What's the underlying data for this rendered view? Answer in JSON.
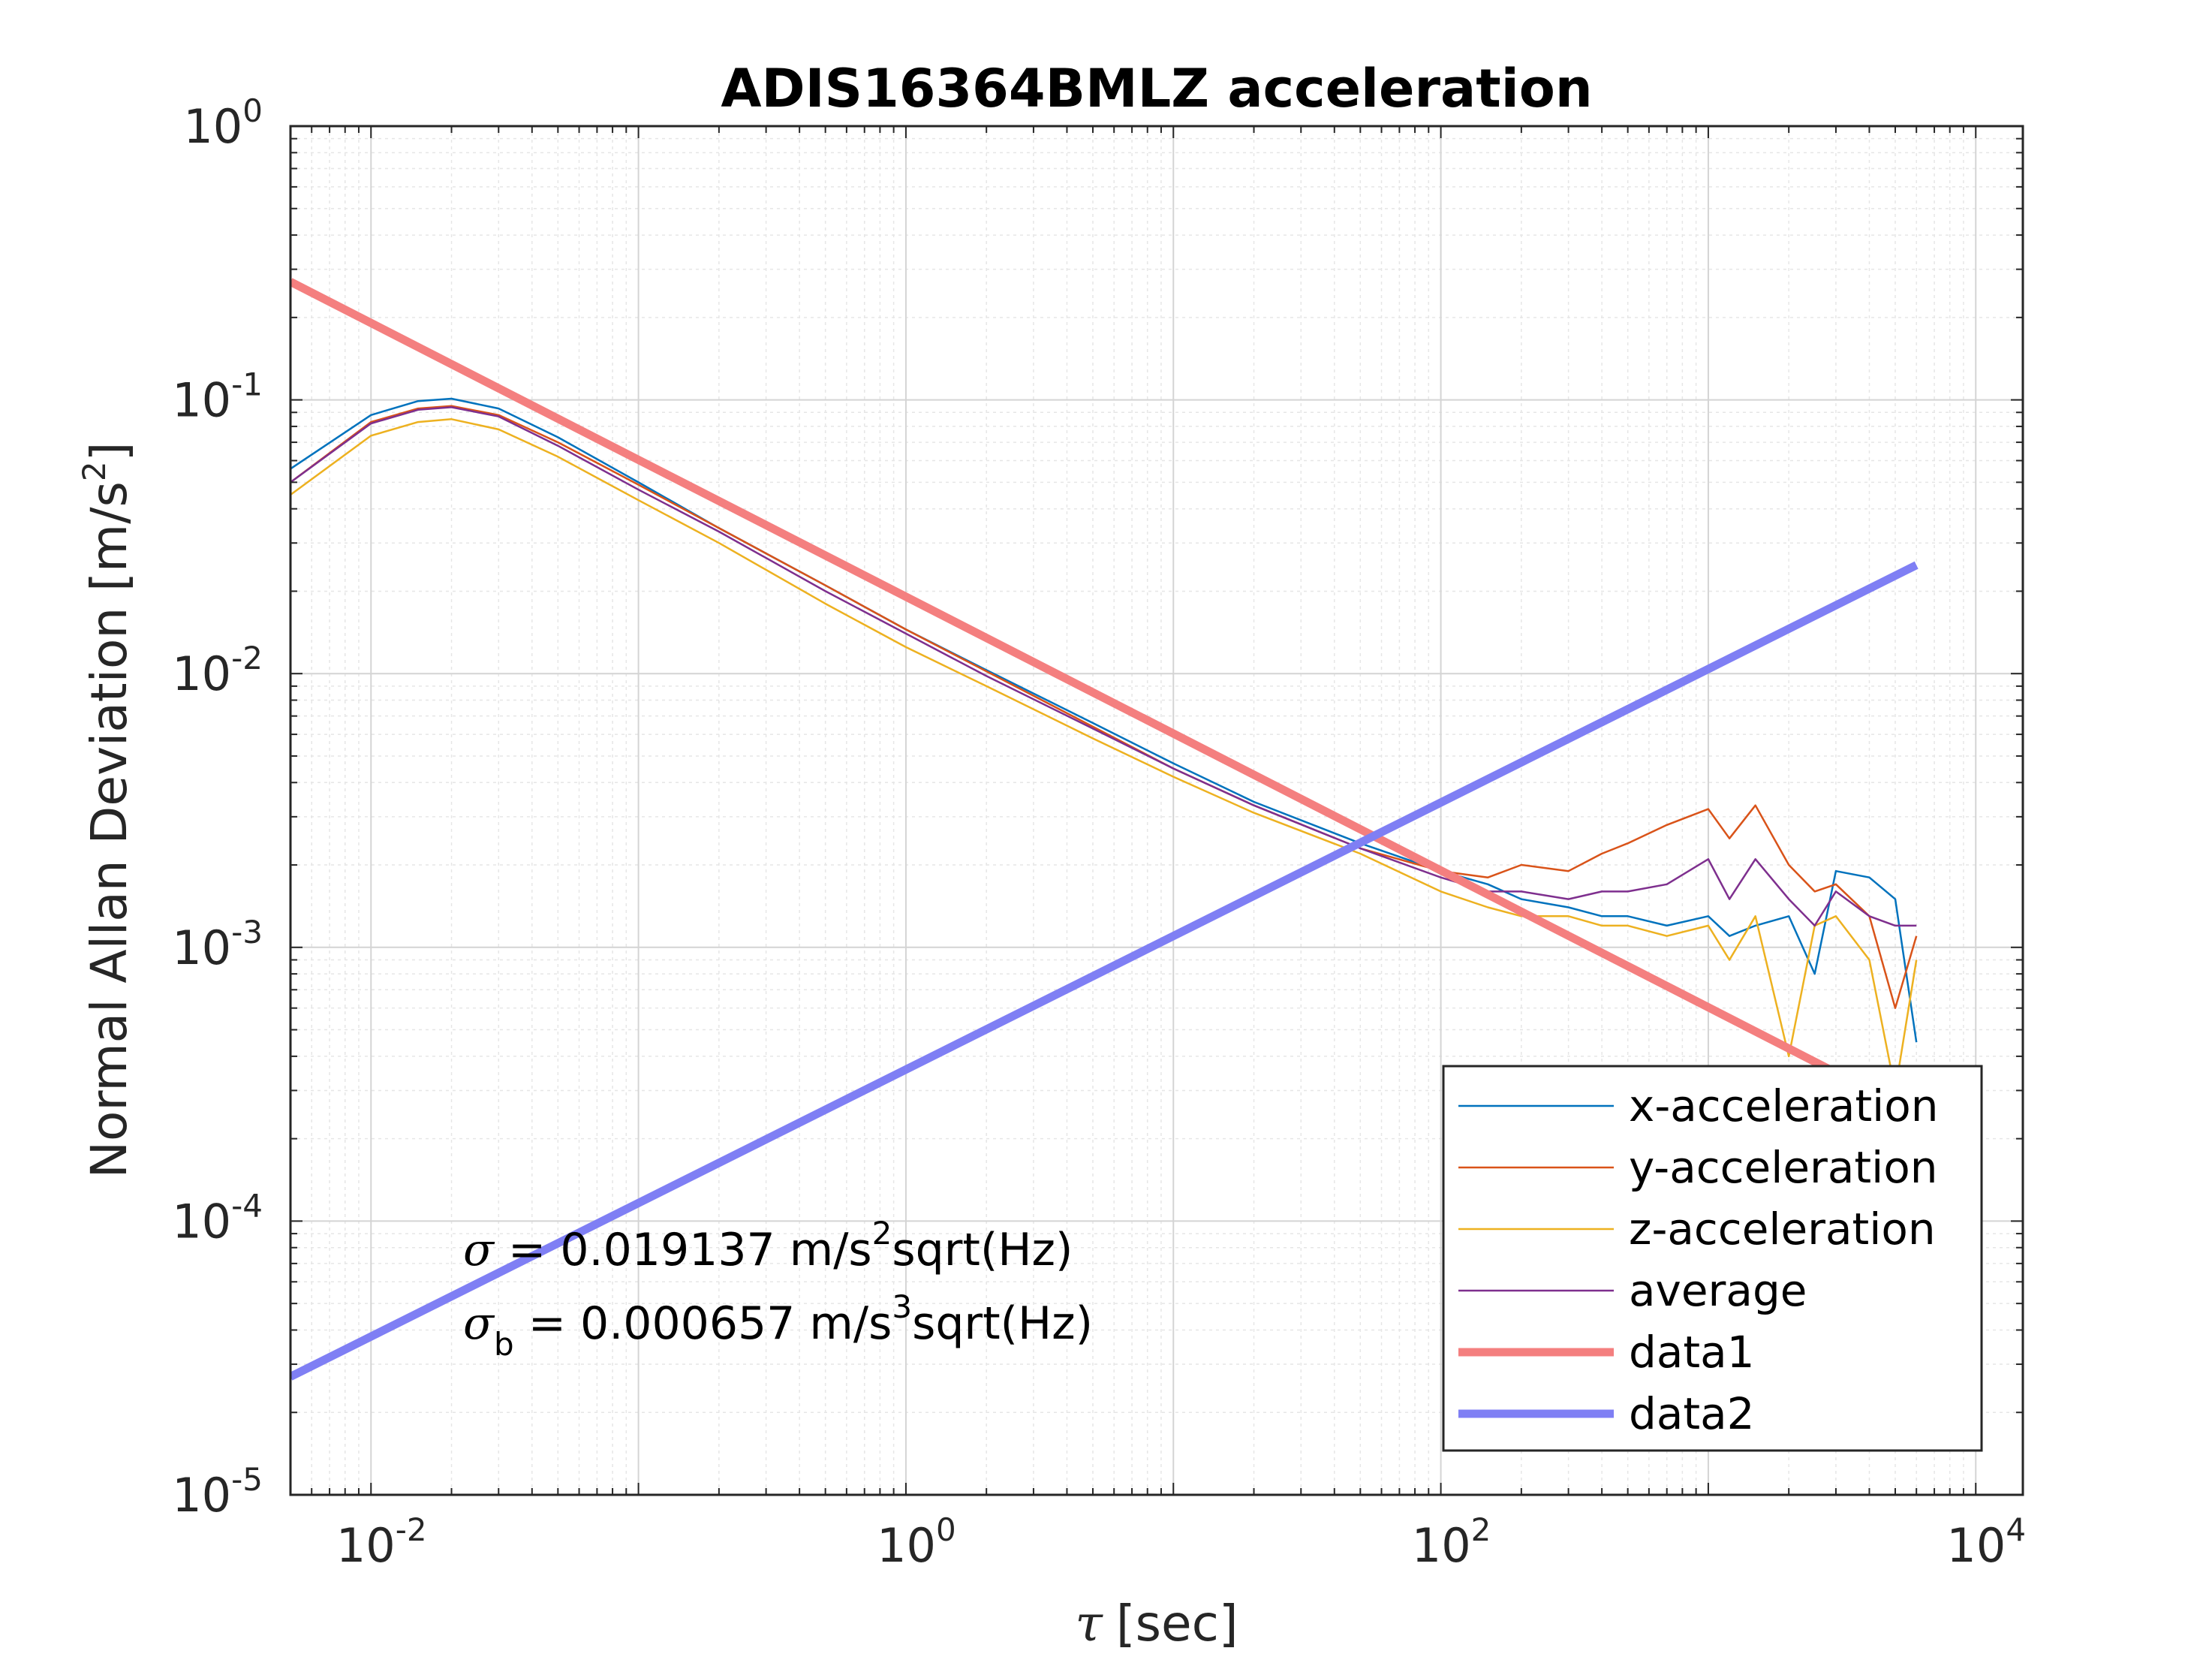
{
  "chart_data": {
    "type": "line",
    "title": "ADIS16364BMLZ acceleration",
    "xlabel": {
      "symbol": "τ",
      "text": "[sec]"
    },
    "ylabel": {
      "text": "Normal Allan Deviation [m/s",
      "sup": "2",
      "close": "]"
    },
    "xscale": "log",
    "yscale": "log",
    "xlim": [
      0.005,
      15000
    ],
    "ylim": [
      1e-05,
      1
    ],
    "grid": true,
    "minor_grid": true,
    "legend_position": "lower-right",
    "x_ticks": [
      {
        "base": "10",
        "exp": "-2",
        "value": 0.01
      },
      {
        "base": "10",
        "exp": "0",
        "value": 1
      },
      {
        "base": "10",
        "exp": "2",
        "value": 100
      },
      {
        "base": "10",
        "exp": "4",
        "value": 10000
      }
    ],
    "y_ticks": [
      {
        "base": "10",
        "exp": "0",
        "value": 1
      },
      {
        "base": "10",
        "exp": "-1",
        "value": 0.1
      },
      {
        "base": "10",
        "exp": "-2",
        "value": 0.01
      },
      {
        "base": "10",
        "exp": "-3",
        "value": 0.001
      },
      {
        "base": "10",
        "exp": "-4",
        "value": 0.0001
      },
      {
        "base": "10",
        "exp": "-5",
        "value": 1e-05
      }
    ],
    "series": [
      {
        "name": "x-acceleration",
        "color": "#0072BD",
        "width": 2.5,
        "x": [
          0.005,
          0.01,
          0.015,
          0.02,
          0.03,
          0.05,
          0.1,
          0.2,
          0.5,
          1,
          2,
          5,
          10,
          20,
          50,
          100,
          150,
          200,
          300,
          400,
          500,
          700,
          1000,
          1200,
          1500,
          2000,
          2500,
          3000,
          4000,
          5000,
          6000
        ],
        "y": [
          0.056,
          0.088,
          0.099,
          0.101,
          0.093,
          0.073,
          0.05,
          0.034,
          0.021,
          0.0145,
          0.0103,
          0.0066,
          0.0047,
          0.0034,
          0.0024,
          0.0019,
          0.0017,
          0.0015,
          0.0014,
          0.0013,
          0.0013,
          0.0012,
          0.0013,
          0.0011,
          0.0012,
          0.0013,
          0.0008,
          0.0019,
          0.0018,
          0.0015,
          0.00045
        ]
      },
      {
        "name": "y-acceleration",
        "color": "#D95319",
        "width": 2.5,
        "x": [
          0.005,
          0.01,
          0.015,
          0.02,
          0.03,
          0.05,
          0.1,
          0.2,
          0.5,
          1,
          2,
          5,
          10,
          20,
          50,
          100,
          150,
          200,
          300,
          400,
          500,
          700,
          1000,
          1200,
          1500,
          2000,
          2500,
          3000,
          4000,
          5000,
          6000
        ],
        "y": [
          0.05,
          0.083,
          0.093,
          0.095,
          0.088,
          0.07,
          0.049,
          0.034,
          0.021,
          0.0145,
          0.0102,
          0.0064,
          0.0045,
          0.0033,
          0.0023,
          0.0019,
          0.0018,
          0.002,
          0.0019,
          0.0022,
          0.0024,
          0.0028,
          0.0032,
          0.0025,
          0.0033,
          0.002,
          0.0016,
          0.0017,
          0.0013,
          0.0006,
          0.0011
        ]
      },
      {
        "name": "z-acceleration",
        "color": "#EDB120",
        "width": 2.5,
        "x": [
          0.005,
          0.01,
          0.015,
          0.02,
          0.03,
          0.05,
          0.1,
          0.2,
          0.5,
          1,
          2,
          5,
          10,
          20,
          50,
          100,
          150,
          200,
          300,
          400,
          500,
          700,
          1000,
          1200,
          1500,
          2000,
          2500,
          3000,
          4000,
          5000,
          6000
        ],
        "y": [
          0.045,
          0.074,
          0.083,
          0.085,
          0.078,
          0.062,
          0.043,
          0.03,
          0.018,
          0.0125,
          0.009,
          0.0058,
          0.0042,
          0.0031,
          0.0022,
          0.0016,
          0.0014,
          0.0013,
          0.0013,
          0.0012,
          0.0012,
          0.0011,
          0.0012,
          0.0009,
          0.0013,
          0.0004,
          0.0012,
          0.0013,
          0.0009,
          0.0003,
          0.0009
        ]
      },
      {
        "name": "average",
        "color": "#7E2F8E",
        "width": 2.5,
        "x": [
          0.005,
          0.01,
          0.015,
          0.02,
          0.03,
          0.05,
          0.1,
          0.2,
          0.5,
          1,
          2,
          5,
          10,
          20,
          50,
          100,
          150,
          200,
          300,
          400,
          500,
          700,
          1000,
          1200,
          1500,
          2000,
          2500,
          3000,
          4000,
          5000,
          6000
        ],
        "y": [
          0.05,
          0.082,
          0.092,
          0.094,
          0.087,
          0.068,
          0.047,
          0.033,
          0.02,
          0.014,
          0.0098,
          0.0063,
          0.0045,
          0.0033,
          0.0023,
          0.0018,
          0.0016,
          0.0016,
          0.0015,
          0.0016,
          0.0016,
          0.0017,
          0.0021,
          0.0015,
          0.0021,
          0.0015,
          0.0012,
          0.0016,
          0.0013,
          0.0012,
          0.0012
        ]
      },
      {
        "name": "data1",
        "color": "#F47F7F",
        "width": 11,
        "x": [
          0.005,
          5000
        ],
        "y": [
          0.27,
          0.00027
        ]
      },
      {
        "name": "data2",
        "color": "#7F7FF4",
        "width": 11,
        "x": [
          0.005,
          6000
        ],
        "y": [
          2.7e-05,
          0.0249
        ]
      }
    ],
    "annotations": [
      {
        "sym": "σ",
        "sub": "",
        "text1": " = 0.019137 m/s",
        "sup": "2",
        "text2": "sqrt(Hz)"
      },
      {
        "sym": "σ",
        "sub": "b",
        "text1": " = 0.000657 m/s",
        "sup": "3",
        "text2": "sqrt(Hz)"
      }
    ]
  }
}
